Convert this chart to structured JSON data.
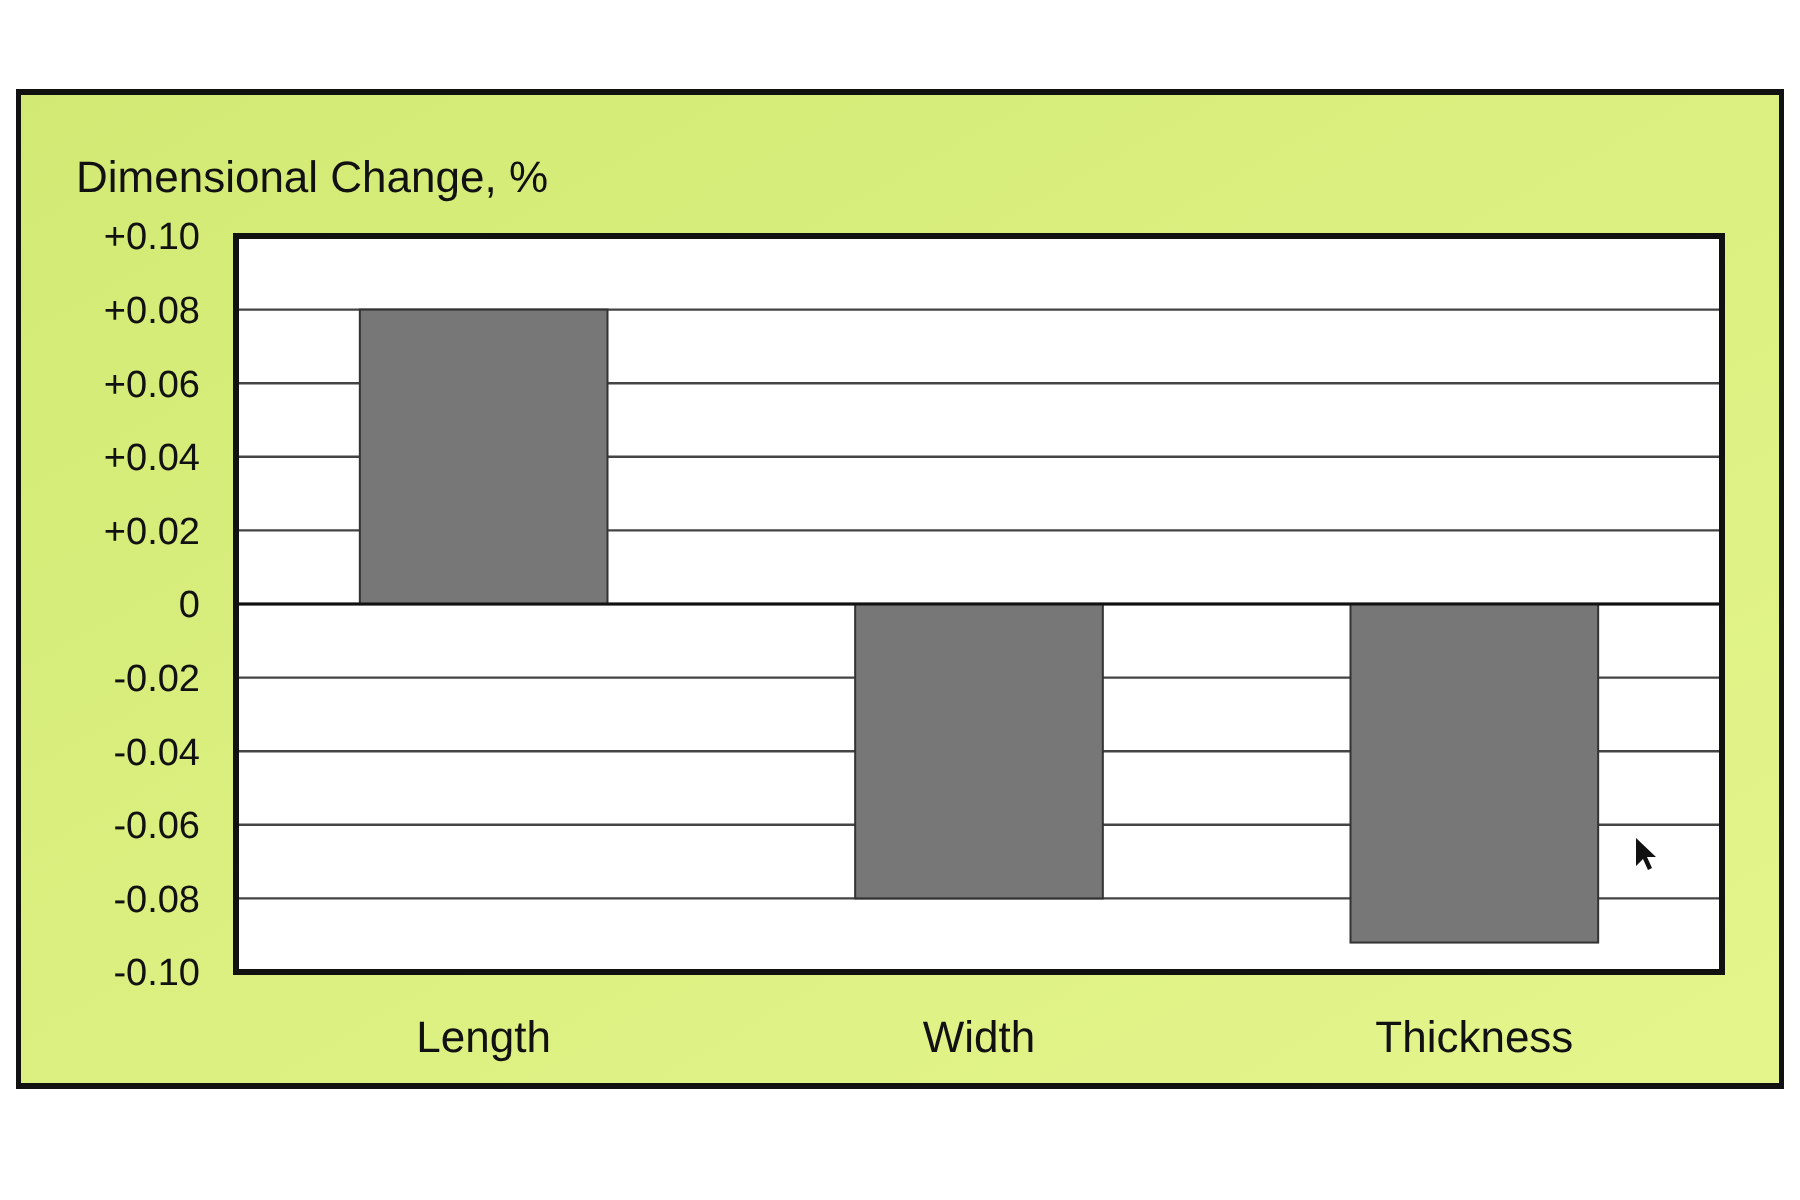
{
  "chart_data": {
    "type": "bar",
    "ylabel": "Dimensional Change, %",
    "categories": [
      "Length",
      "Width",
      "Thickness"
    ],
    "values": [
      0.08,
      -0.08,
      -0.092
    ],
    "color": "#777777",
    "ylim": [
      -0.1,
      0.1
    ],
    "yticks": [
      {
        "value": -0.1,
        "label": "-0.10"
      },
      {
        "value": -0.08,
        "label": "-0.08"
      },
      {
        "value": -0.06,
        "label": "-0.06"
      },
      {
        "value": -0.04,
        "label": "-0.04"
      },
      {
        "value": -0.02,
        "label": "-0.02"
      },
      0,
      {
        "value": 0.02,
        "label": "+0.02"
      },
      {
        "value": 0.04,
        "label": "+0.04"
      },
      {
        "value": 0.06,
        "label": "+0.06"
      },
      {
        "value": 0.08,
        "label": "+0.08"
      },
      {
        "value": 0.1,
        "label": "+0.10"
      }
    ],
    "grid": "y"
  }
}
